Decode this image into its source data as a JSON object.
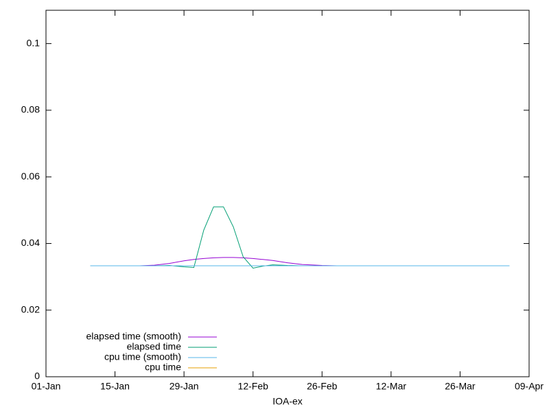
{
  "chart_data": {
    "type": "line",
    "xlabel": "IOA-ex",
    "x": [
      9,
      14,
      19,
      22,
      25,
      28,
      30,
      32,
      34,
      36,
      38,
      40,
      42,
      44,
      46,
      49,
      52,
      56,
      59,
      65,
      75,
      85,
      94
    ],
    "series": [
      {
        "name": "elapsed time (smooth)",
        "color": "#9400d3",
        "values": [
          null,
          null,
          0.0333,
          0.0335,
          0.034,
          0.0348,
          0.0352,
          0.0355,
          0.0357,
          0.0358,
          0.0358,
          0.0357,
          0.0355,
          0.0352,
          0.0349,
          0.0342,
          0.0337,
          0.0334,
          0.0333,
          null,
          null,
          null,
          null
        ]
      },
      {
        "name": "elapsed time",
        "color": "#009e73",
        "values": [
          0.0333,
          0.0333,
          0.0333,
          0.0333,
          0.0334,
          0.033,
          0.0328,
          0.044,
          0.051,
          0.051,
          0.045,
          0.036,
          0.0326,
          0.0332,
          0.0336,
          0.0334,
          0.0333,
          0.0333,
          0.0333,
          0.0333,
          0.0333,
          0.0333,
          0.0333
        ]
      },
      {
        "name": "cpu time (smooth)",
        "color": "#56b4e9",
        "values": [
          0.0333,
          0.0333,
          0.0333,
          0.0333,
          0.0333,
          0.0333,
          0.0333,
          0.0333,
          0.0333,
          0.0333,
          0.0333,
          0.0333,
          0.0333,
          0.0333,
          0.0333,
          0.0333,
          0.0333,
          0.0333,
          0.0333,
          0.0333,
          0.0333,
          0.0333,
          0.0333
        ]
      },
      {
        "name": "cpu time",
        "color": "#e69f00",
        "values": [
          null,
          null,
          null,
          null,
          null,
          null,
          null,
          null,
          null,
          null,
          null,
          null,
          null,
          null,
          null,
          null,
          null,
          null,
          null,
          null,
          null,
          null,
          null
        ]
      }
    ],
    "xlim": [
      0,
      98
    ],
    "xticks": [
      {
        "value": 0,
        "label": "01-Jan"
      },
      {
        "value": 14,
        "label": "15-Jan"
      },
      {
        "value": 28,
        "label": "29-Jan"
      },
      {
        "value": 42,
        "label": "12-Feb"
      },
      {
        "value": 56,
        "label": "26-Feb"
      },
      {
        "value": 70,
        "label": "12-Mar"
      },
      {
        "value": 84,
        "label": "26-Mar"
      },
      {
        "value": 98,
        "label": "09-Apr"
      }
    ],
    "ylim": [
      0,
      0.11
    ],
    "yticks": [
      0,
      0.02,
      0.04,
      0.06,
      0.08,
      0.1
    ],
    "legend": "lower left"
  }
}
